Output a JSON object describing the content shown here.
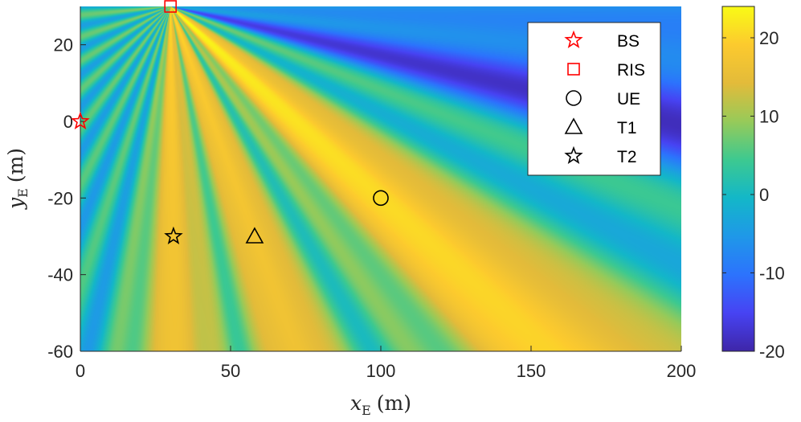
{
  "chart_data": {
    "type": "heatmap",
    "title": "",
    "xlabel": {
      "var": "x",
      "sub": "E",
      "unit": "(m)"
    },
    "ylabel": {
      "var": "y",
      "sub": "E",
      "unit": "(m)"
    },
    "xlim": [
      0,
      200
    ],
    "ylim": [
      -60,
      30
    ],
    "xticks": [
      0,
      50,
      100,
      150,
      200
    ],
    "yticks": [
      20,
      0,
      -20,
      -40,
      -60
    ],
    "colorbar": {
      "limits": [
        -20,
        24
      ],
      "ticks": [
        20,
        10,
        0,
        -10,
        -20
      ],
      "colormap": "parula",
      "colors": [
        "#3e26a8",
        "#4743f3",
        "#2c73fd",
        "#1f98e8",
        "#13b7c8",
        "#3dc990",
        "#97ca59",
        "#e3bb3a",
        "#fcca2e",
        "#f9fb15"
      ]
    },
    "markers": [
      {
        "name": "BS",
        "symbol": "star5",
        "color": "#ff0000",
        "x": 0,
        "y": 0
      },
      {
        "name": "RIS",
        "symbol": "square",
        "color": "#ff0000",
        "x": 30,
        "y": 30
      },
      {
        "name": "UE",
        "symbol": "circle",
        "color": "#000000",
        "x": 100,
        "y": -20
      },
      {
        "name": "T1",
        "symbol": "triangle",
        "color": "#000000",
        "x": 58,
        "y": -30
      },
      {
        "name": "T2",
        "symbol": "star5",
        "color": "#000000",
        "x": 31,
        "y": -30
      }
    ],
    "legend": {
      "position": "top-right",
      "entries": [
        "BS",
        "RIS",
        "UE",
        "T1",
        "T2"
      ]
    },
    "beams": [
      {
        "target": "UE",
        "x": 100,
        "y": -20,
        "peak_db": 23
      },
      {
        "target": "T1",
        "x": 58,
        "y": -30,
        "peak_db": 19
      },
      {
        "target": "T2",
        "x": 31,
        "y": -30,
        "peak_db": 19
      }
    ],
    "null_direction": {
      "through": [
        200,
        5
      ],
      "depth_db": -19
    }
  }
}
